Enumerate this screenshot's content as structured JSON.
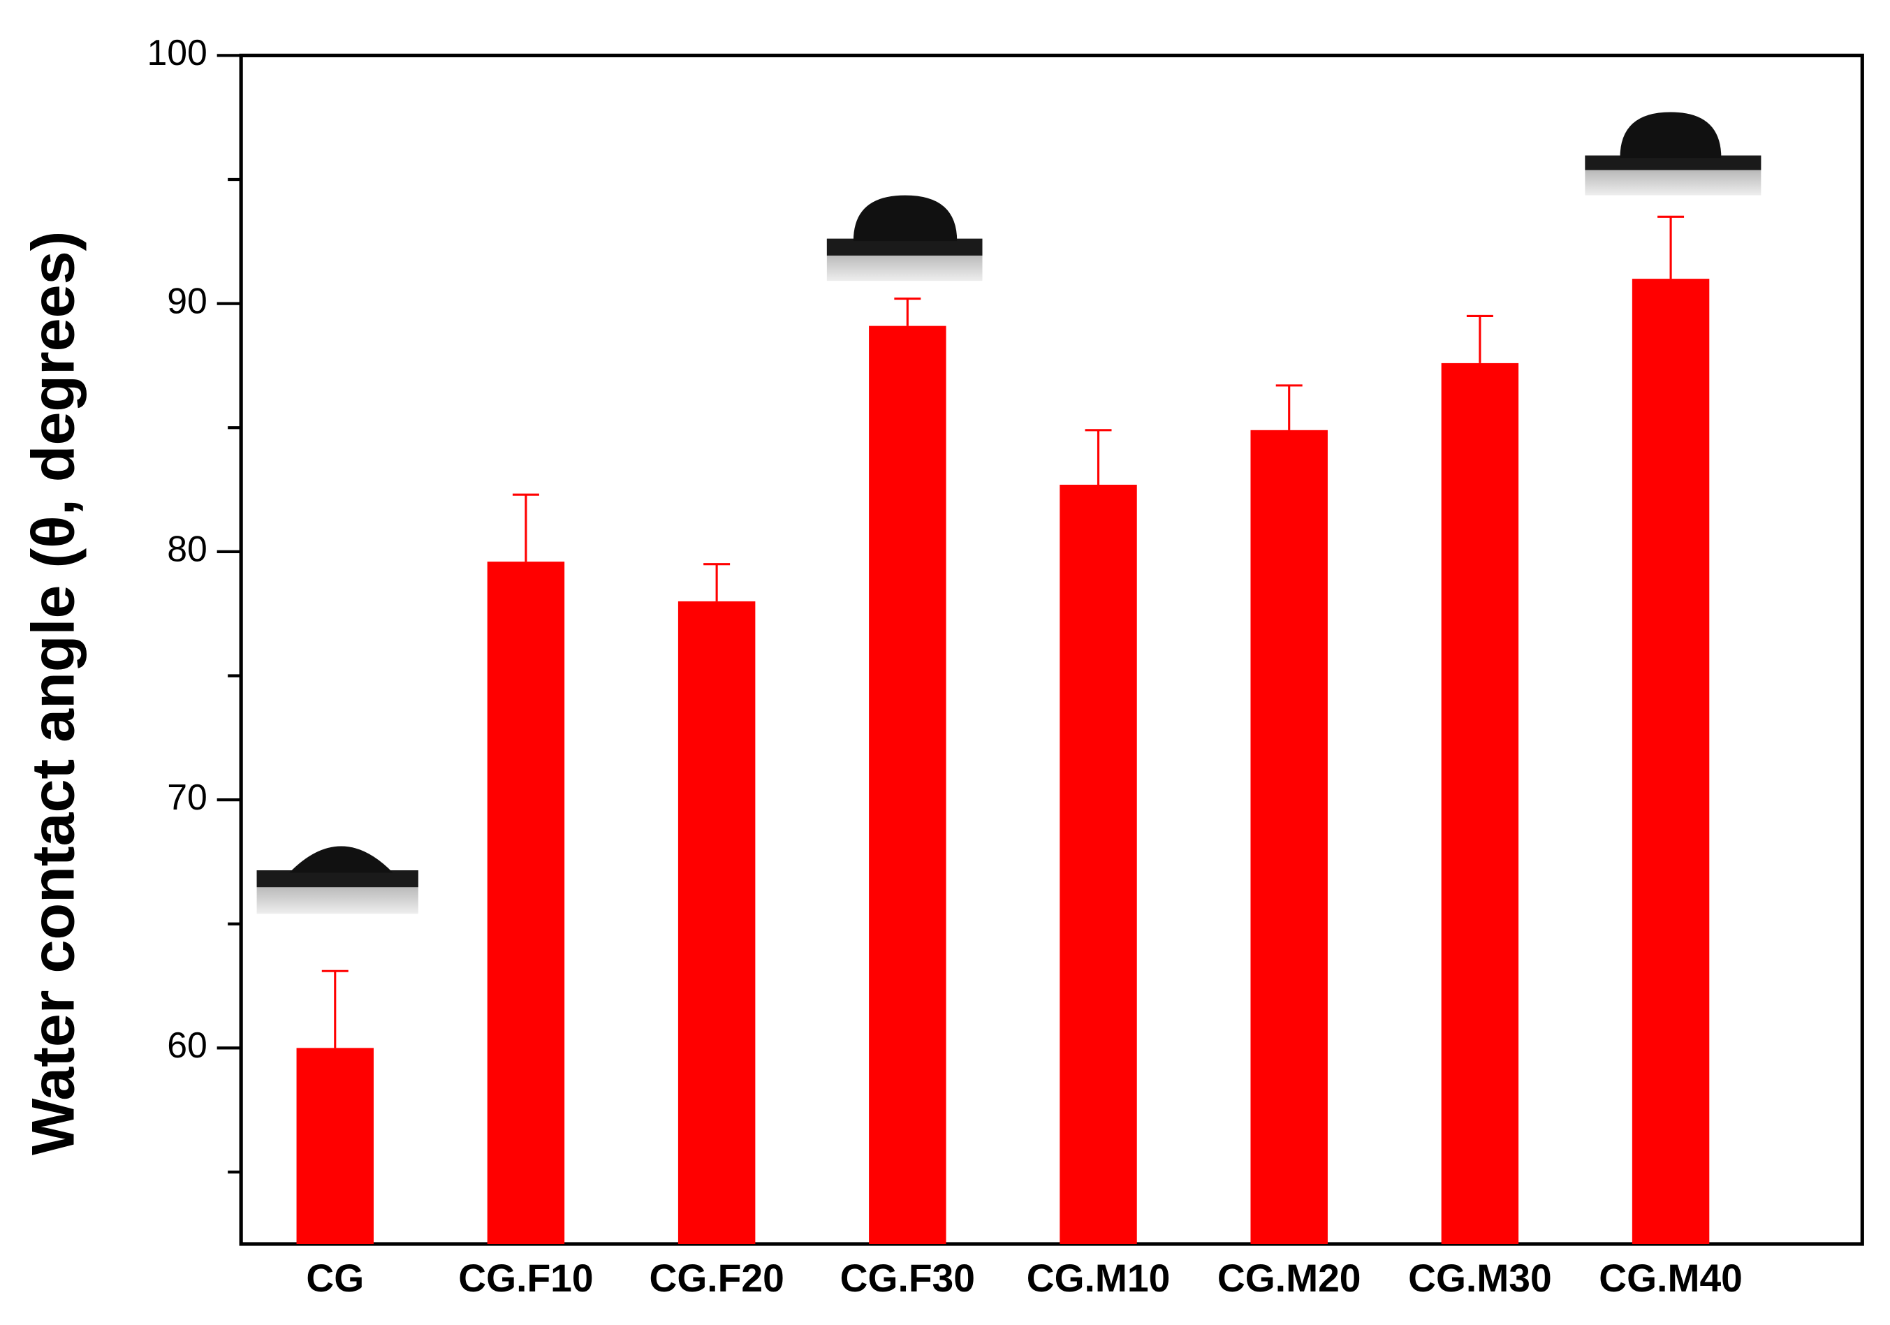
{
  "chart_data": {
    "type": "bar",
    "ylabel": "Water contact angle (θ, degrees)",
    "categories": [
      "CG",
      "CG.F10",
      "CG.F20",
      "CG.F30",
      "CG.M10",
      "CG.M20",
      "CG.M30",
      "CG.M40"
    ],
    "values": [
      60.0,
      79.6,
      78.0,
      89.1,
      82.7,
      84.9,
      87.6,
      91.0
    ],
    "errors": [
      3.1,
      2.7,
      1.5,
      1.1,
      2.2,
      1.8,
      1.9,
      2.5
    ],
    "color": "#ff0000",
    "ylim": [
      52.1,
      100
    ],
    "yticks": [
      60,
      70,
      80,
      90,
      100
    ],
    "minor_yticks": [
      55,
      65,
      75,
      85,
      95
    ]
  }
}
